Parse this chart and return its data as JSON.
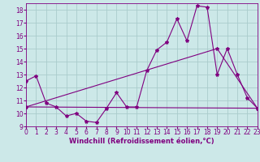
{
  "bg_color": "#cce8e8",
  "grid_color": "#aacccc",
  "line_color": "#800080",
  "xlabel": "Windchill (Refroidissement éolien,°C)",
  "xlim": [
    0,
    23
  ],
  "ylim": [
    9,
    18.5
  ],
  "yticks": [
    9,
    10,
    11,
    12,
    13,
    14,
    15,
    16,
    17,
    18
  ],
  "xticks": [
    0,
    1,
    2,
    3,
    4,
    5,
    6,
    7,
    8,
    9,
    10,
    11,
    12,
    13,
    14,
    15,
    16,
    17,
    18,
    19,
    20,
    21,
    22,
    23
  ],
  "line1_x": [
    0,
    1,
    2,
    3,
    4,
    5,
    6,
    7,
    8,
    9,
    10,
    11,
    12,
    13,
    14,
    15,
    16,
    17,
    18,
    19,
    20,
    21,
    22,
    23
  ],
  "line1_y": [
    12.5,
    12.9,
    10.8,
    10.5,
    9.8,
    10.0,
    9.4,
    9.3,
    10.4,
    11.6,
    10.5,
    10.5,
    13.3,
    14.9,
    15.5,
    17.3,
    15.6,
    18.3,
    18.2,
    13.0,
    15.0,
    13.0,
    11.2,
    10.4
  ],
  "line2_x": [
    0,
    23
  ],
  "line2_y": [
    10.5,
    10.4
  ],
  "line3_x": [
    0,
    19,
    23
  ],
  "line3_y": [
    10.5,
    15.0,
    10.4
  ],
  "marker": "*",
  "marker_size": 3,
  "tick_fontsize": 5.5,
  "xlabel_fontsize": 6
}
